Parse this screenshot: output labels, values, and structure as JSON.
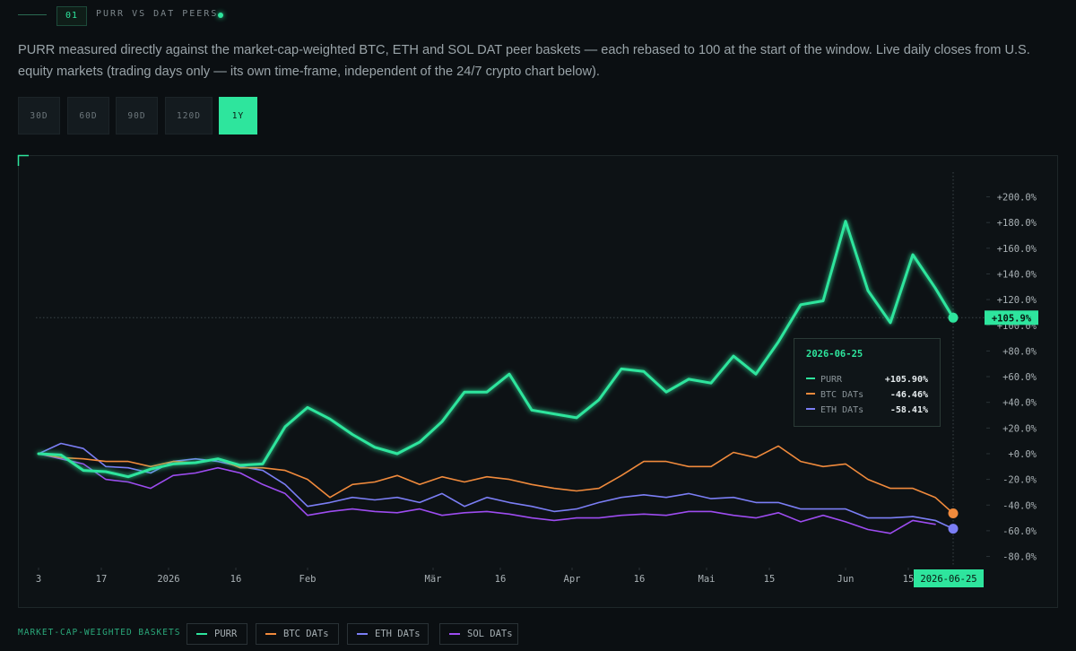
{
  "header": {
    "number": "01",
    "title": "PURR VS DAT PEERS"
  },
  "description": "PURR measured directly against the market-cap-weighted BTC, ETH and SOL DAT peer baskets — each rebased to 100 at the start of the window. Live daily closes from U.S. equity markets (trading days only — its own time-frame, independent of the 24/7 crypto chart below).",
  "range_buttons": [
    "30D",
    "60D",
    "90D",
    "120D",
    "1Y"
  ],
  "active_range": 4,
  "legend_title": "MARKET-CAP-WEIGHTED BASKETS",
  "chart_data": {
    "type": "line",
    "x": [
      0,
      5,
      10,
      15,
      20,
      25,
      30,
      35,
      40,
      45,
      50,
      55,
      60,
      65,
      70,
      75,
      80,
      85,
      90,
      95,
      100,
      105,
      110,
      115,
      120,
      125,
      130,
      135,
      140,
      145,
      150,
      155,
      160,
      165,
      170,
      175,
      180,
      185,
      190,
      195,
      200,
      204
    ],
    "xlim": [
      -4,
      211
    ],
    "xticks": [
      {
        "value": 0,
        "label": "3"
      },
      {
        "value": 14,
        "label": "17"
      },
      {
        "value": 29,
        "label": "2026"
      },
      {
        "value": 44,
        "label": "16"
      },
      {
        "value": 60,
        "label": "Feb"
      },
      {
        "value": 88,
        "label": "Mär"
      },
      {
        "value": 103,
        "label": "16"
      },
      {
        "value": 119,
        "label": "Apr"
      },
      {
        "value": 134,
        "label": "16"
      },
      {
        "value": 149,
        "label": "Mai"
      },
      {
        "value": 163,
        "label": "15"
      },
      {
        "value": 180,
        "label": "Jun"
      },
      {
        "value": 194,
        "label": "15"
      }
    ],
    "ylim": [
      -88,
      229
    ],
    "yticks": [
      {
        "value": 200,
        "label": "+200.0%"
      },
      {
        "value": 180,
        "label": "+180.0%"
      },
      {
        "value": 160,
        "label": "+160.0%"
      },
      {
        "value": 140,
        "label": "+140.0%"
      },
      {
        "value": 120,
        "label": "+120.0%"
      },
      {
        "value": 100,
        "label": "+100.0%"
      },
      {
        "value": 80,
        "label": "+80.0%"
      },
      {
        "value": 60,
        "label": "+60.0%"
      },
      {
        "value": 40,
        "label": "+40.0%"
      },
      {
        "value": 20,
        "label": "+20.0%"
      },
      {
        "value": 0,
        "label": "+0.0%"
      },
      {
        "value": -20,
        "label": "-20.0%"
      },
      {
        "value": -40,
        "label": "-40.0%"
      },
      {
        "value": -60,
        "label": "-60.0%"
      },
      {
        "value": -80,
        "label": "-80.0%"
      }
    ],
    "grid": false,
    "series": [
      {
        "name": "PURR",
        "color": "#2ee59d",
        "values": [
          0,
          -1,
          -13,
          -14,
          -18,
          -12,
          -8,
          -7,
          -4,
          -9,
          -8,
          21,
          36,
          27,
          15,
          5,
          0,
          9,
          25,
          48,
          48,
          62,
          34,
          31,
          28,
          42,
          66,
          64,
          48,
          58,
          55,
          76,
          62,
          87,
          116,
          119,
          181,
          127,
          102,
          155,
          129,
          105.9
        ]
      },
      {
        "name": "BTC DATs",
        "color": "#f08a3c",
        "values": [
          0,
          -3,
          -4,
          -6,
          -6,
          -10,
          -6,
          -7,
          -4,
          -11,
          -11,
          -13,
          -20,
          -34,
          -24,
          -22,
          -17,
          -24,
          -18,
          -22,
          -18,
          -20,
          -24,
          -27,
          -29,
          -27,
          -17,
          -6,
          -6,
          -10,
          -10,
          1,
          -3,
          6,
          -6,
          -10,
          -8,
          -20,
          -27,
          -27,
          -34,
          -46.46
        ]
      },
      {
        "name": "ETH DATs",
        "color": "#7b7ef5",
        "values": [
          0,
          8,
          4,
          -10,
          -11,
          -15,
          -6,
          -4,
          -6,
          -10,
          -13,
          -24,
          -41,
          -38,
          -34,
          -36,
          -34,
          -38,
          -31,
          -41,
          -34,
          -38,
          -41,
          -45,
          -43,
          -38,
          -34,
          -32,
          -34,
          -31,
          -35,
          -34,
          -38,
          -38,
          -43,
          -43,
          -43,
          -50,
          -50,
          -49,
          -52,
          -58.41
        ]
      },
      {
        "name": "SOL DATs",
        "color": "#9d4cf0",
        "values": [
          0,
          -4,
          -8,
          -20,
          -22,
          -27,
          -17,
          -15,
          -11,
          -15,
          -24,
          -31,
          -48,
          -45,
          -43,
          -45,
          -46,
          -43,
          -48,
          -46,
          -45,
          -47,
          -50,
          -52,
          -50,
          -50,
          -48,
          -47,
          -48,
          -45,
          -45,
          -48,
          -50,
          -46,
          -53,
          -48,
          -53,
          -59,
          -62,
          -52,
          -55,
          null
        ]
      }
    ],
    "end_label": {
      "value": 105.9,
      "label": "+105.9%"
    },
    "tooltip": {
      "date": "2026-06-25",
      "entries": [
        {
          "value": 105.9,
          "label": "+105.90%"
        },
        {
          "value": -46.46,
          "label": "-46.46%"
        },
        {
          "value": -58.41,
          "label": "-58.41%"
        }
      ]
    }
  }
}
